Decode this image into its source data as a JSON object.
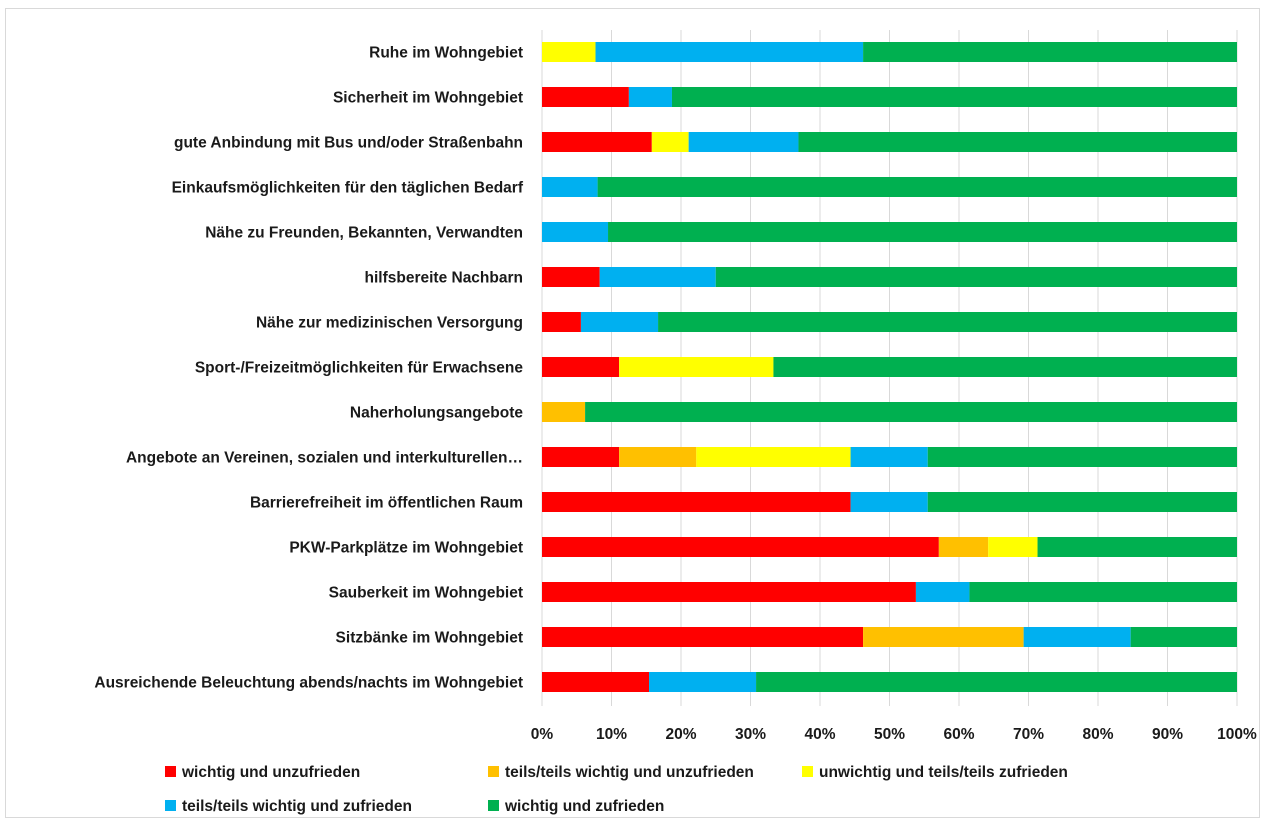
{
  "chart_data": {
    "type": "bar",
    "orientation": "horizontal",
    "stacked": "percent",
    "title": "",
    "xlabel": "",
    "ylabel": "",
    "xlim": [
      0,
      100
    ],
    "grid": true,
    "legend_position": "bottom",
    "x_ticks": [
      "0%",
      "10%",
      "20%",
      "30%",
      "40%",
      "50%",
      "60%",
      "70%",
      "80%",
      "90%",
      "100%"
    ],
    "categories": [
      "Ruhe im Wohngebiet",
      "Sicherheit im Wohngebiet",
      "gute Anbindung mit Bus und/oder Straßenbahn",
      "Einkaufsmöglichkeiten für den täglichen Bedarf",
      "Nähe zu Freunden, Bekannten, Verwandten",
      "hilfsbereite Nachbarn",
      "Nähe zur medizinischen Versorgung",
      "Sport-/Freizeitmöglichkeiten für Erwachsene",
      "Naherholungsangebote",
      "Angebote an Vereinen, sozialen und interkulturellen…",
      "Barrierefreiheit im öffentlichen Raum",
      "PKW-Parkplätze im Wohngebiet",
      "Sauberkeit im Wohngebiet",
      "Sitzbänke im Wohngebiet",
      "Ausreichende Beleuchtung abends/nachts im Wohngebiet"
    ],
    "series": [
      {
        "name": "wichtig und unzufrieden",
        "color": "#ff0000",
        "values": [
          0,
          12.5,
          15.8,
          0,
          0,
          8.3,
          5.6,
          11.1,
          0,
          11.1,
          44.4,
          57.1,
          53.8,
          46.2,
          15.4
        ]
      },
      {
        "name": "teils/teils wichtig und unzufrieden",
        "color": "#ffc000",
        "values": [
          0,
          0,
          0,
          0,
          0,
          0,
          0,
          0,
          6.2,
          11.1,
          0,
          7.1,
          0,
          23.1,
          0
        ]
      },
      {
        "name": "unwichtig und teils/teils zufrieden",
        "color": "#ffff00",
        "values": [
          7.7,
          0,
          5.3,
          0,
          0,
          0,
          0,
          22.2,
          0,
          22.2,
          0,
          7.1,
          0,
          0,
          0
        ]
      },
      {
        "name": "teils/teils wichtig und zufrieden",
        "color": "#00b0f0",
        "values": [
          38.5,
          6.2,
          15.8,
          8.0,
          9.5,
          16.7,
          11.1,
          0,
          0,
          11.1,
          11.1,
          0,
          7.7,
          15.4,
          15.4
        ]
      },
      {
        "name": "wichtig und zufrieden",
        "color": "#00b050",
        "values": [
          53.8,
          81.3,
          63.1,
          92.0,
          90.5,
          75.0,
          83.3,
          66.7,
          93.8,
          44.5,
          44.5,
          28.7,
          38.5,
          15.3,
          69.2
        ]
      }
    ]
  }
}
